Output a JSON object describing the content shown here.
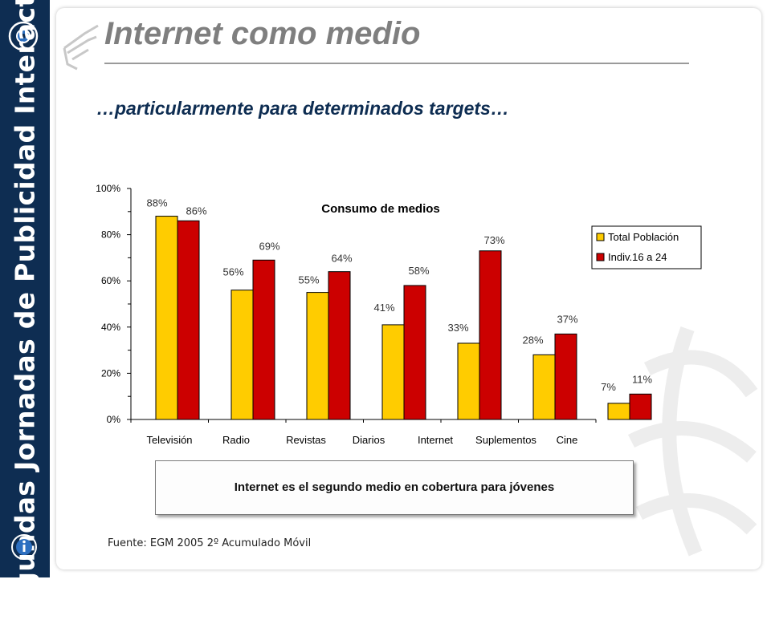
{
  "sidebar": {
    "text": "Segundas Jornadas de Publicidad Interactiva"
  },
  "header": {
    "title": "Internet como medio",
    "subtitle": "…particularmente para determinados targets…"
  },
  "callout": {
    "text": "Internet es el segundo medio en cobertura para jóvenes"
  },
  "footer": {
    "source": "Fuente: EGM 2005 2º Acumulado Móvil"
  },
  "colors": {
    "navy": "#0e2d52",
    "series1": "#ffcc00",
    "series2": "#cc0000"
  },
  "chart_data": {
    "type": "bar",
    "title": "Consumo de medios",
    "categories": [
      "Televisión",
      "Radio",
      "Revistas",
      "Diarios",
      "Internet",
      "Suplementos",
      "Cine"
    ],
    "series": [
      {
        "name": "Total Población",
        "values": [
          88,
          56,
          55,
          41,
          33,
          28,
          7
        ],
        "labels": [
          "88%",
          "56%",
          "55%",
          "41%",
          "33%",
          "28%",
          "7%"
        ],
        "color": "#ffcc00"
      },
      {
        "name": "Indiv.16 a 24",
        "values": [
          86,
          69,
          64,
          58,
          73,
          37,
          11
        ],
        "labels": [
          "86%",
          "69%",
          "64%",
          "58%",
          "73%",
          "37%",
          "11%"
        ],
        "color": "#cc0000"
      }
    ],
    "y_ticks": [
      "0%",
      "20%",
      "40%",
      "60%",
      "80%",
      "100%"
    ],
    "ylim": [
      0,
      100
    ],
    "grid": false,
    "legend_position": "right"
  }
}
